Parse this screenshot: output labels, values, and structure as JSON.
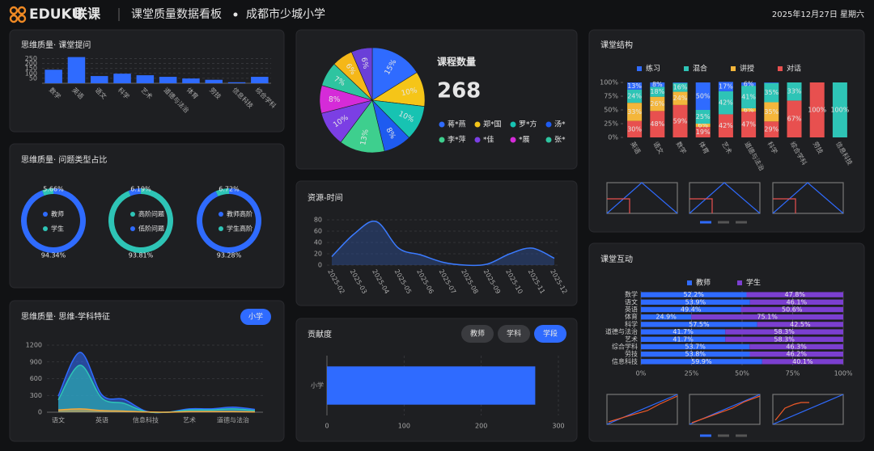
{
  "header": {
    "logo": "EDUKU",
    "logo_cn": "联课",
    "title": "课堂质量数据看板",
    "school": "成都市少城小学",
    "date": "2025年12月27日 星期六"
  },
  "chart_data": [
    {
      "type": "bar",
      "title": "思维质量· 课堂提问",
      "categories": [
        "数学",
        "英语",
        "语文",
        "科学",
        "艺术",
        "道德与法治",
        "体育",
        "劳技",
        "信息科技",
        "综合学科"
      ],
      "values": [
        137,
        265,
        73,
        97,
        81,
        65,
        48,
        35,
        10,
        65
      ],
      "color": "#2f6bff",
      "ylim": [
        0,
        270
      ],
      "yticks": [
        50,
        100,
        150,
        200,
        250
      ],
      "grid": true
    },
    {
      "type": "donut",
      "title": "思维质量· 问题类型占比",
      "pies": [
        {
          "categories": [
            "教师",
            "学生"
          ],
          "values": [
            94.34,
            5.66
          ],
          "value_labels": [
            "94.34%",
            "5.66%"
          ],
          "colors": [
            "#2f6bff",
            "#2ec4b6"
          ]
        },
        {
          "categories": [
            "高阶问题",
            "低阶问题"
          ],
          "values": [
            93.81,
            6.19
          ],
          "value_labels": [
            "93.81%",
            "6.19%"
          ],
          "colors": [
            "#2ec4b6",
            "#2f6bff"
          ]
        },
        {
          "categories": [
            "教师高阶",
            "学生高阶"
          ],
          "values": [
            93.28,
            6.72
          ],
          "value_labels": [
            "93.28%",
            "6.72%"
          ],
          "colors": [
            "#2f6bff",
            "#2ec4b6"
          ]
        }
      ]
    },
    {
      "type": "area",
      "title": "思维质量· 思维-学科特征",
      "button": "小学",
      "categories": [
        "语文",
        null,
        "英语",
        null,
        "信息科技",
        null,
        "艺术",
        null,
        "道德与法治",
        null
      ],
      "series": [
        {
          "color": "#2f6bff",
          "values": [
            290,
            1070,
            310,
            230,
            20,
            0,
            60,
            60,
            90,
            50
          ]
        },
        {
          "color": "#2ec4b6",
          "values": [
            220,
            840,
            250,
            160,
            10,
            0,
            40,
            40,
            60,
            30
          ]
        },
        {
          "color": "#f4a93b",
          "values": [
            40,
            60,
            30,
            20,
            5,
            0,
            10,
            10,
            10,
            5
          ]
        }
      ],
      "ylim": [
        0,
        1200
      ],
      "yticks": [
        0,
        300,
        600,
        900,
        1200
      ],
      "grid": true
    },
    {
      "type": "pie",
      "title": "课程数量",
      "total": 268,
      "categories": [
        "蒋*燕",
        "郑*国",
        "罗*方",
        "汤*",
        "李*萍",
        "*佳",
        "*展",
        "张*",
        null,
        null
      ],
      "values": [
        15,
        10,
        10,
        8,
        13,
        10,
        8,
        7,
        6,
        6
      ],
      "value_labels": [
        "15%",
        "10%",
        "10%",
        "8%",
        "13%",
        "10%",
        "8%",
        "7%",
        "6%",
        "6%"
      ],
      "colors": [
        "#2f6bff",
        "#f5c518",
        "#17c3b2",
        "#1e5bf0",
        "#3ecf8e",
        "#7b3fe4",
        "#d52bd8",
        "#2ec4a0",
        "#f5b718",
        "#6a3fd8"
      ]
    },
    {
      "type": "line",
      "title": "资源-时间",
      "x": [
        "2025-02",
        "2025-03",
        "2025-04",
        "2025-05",
        "2025-06",
        "2025-07",
        "2025-08",
        "2025-09",
        "2025-10",
        "2025-11",
        "2025-12"
      ],
      "values": [
        15,
        55,
        77,
        30,
        18,
        5,
        0,
        2,
        20,
        30,
        12
      ],
      "color": "#3b7bff",
      "ylim": [
        0,
        90
      ],
      "yticks": [
        0,
        20,
        40,
        60,
        80
      ],
      "grid": true
    },
    {
      "type": "hbar",
      "title": "贡献度",
      "buttons": [
        "教师",
        "学科",
        "学段"
      ],
      "active": 2,
      "categories": [
        "小学"
      ],
      "values": [
        270
      ],
      "color": "#2f6bff",
      "xlim": [
        0,
        300
      ],
      "xticks": [
        0,
        100,
        200,
        300
      ],
      "grid": true
    },
    {
      "type": "stacked_bar",
      "title": "课堂结构",
      "categories": [
        "英语",
        "语文",
        "数学",
        "体育",
        "艺术",
        "道德与法治",
        "科学",
        "综合学科",
        "劳技",
        "信息科技"
      ],
      "series": [
        {
          "name": "练习",
          "color": "#2f6bff",
          "values": [
            13,
            8,
            1,
            50,
            17,
            6,
            1,
            0,
            0,
            0
          ],
          "value_labels": [
            "13%",
            "8%",
            null,
            "50%",
            "17%",
            "6%",
            null,
            null,
            null,
            null
          ]
        },
        {
          "name": "混合",
          "color": "#2ec4b6",
          "values": [
            24,
            18,
            16,
            25,
            42,
            41,
            35,
            33,
            0,
            100
          ],
          "value_labels": [
            "24%",
            "18%",
            "16%",
            "25%",
            "42%",
            "41%",
            "35%",
            "33%",
            null,
            "100%"
          ]
        },
        {
          "name": "讲授",
          "color": "#f4b63b",
          "values": [
            33,
            26,
            24,
            6,
            0,
            6,
            35,
            0,
            0,
            0
          ],
          "value_labels": [
            "33%",
            "26%",
            "24%",
            "6%",
            null,
            "6%",
            "35%",
            null,
            null,
            null
          ]
        },
        {
          "name": "对话",
          "color": "#e8504f",
          "values": [
            30,
            48,
            59,
            19,
            42,
            47,
            29,
            67,
            100,
            0
          ],
          "value_labels": [
            "30%",
            "48%",
            "59%",
            "19%",
            "42%",
            "47%",
            "29%",
            "67%",
            "100%",
            null
          ]
        }
      ],
      "ylim": [
        0,
        100
      ],
      "yticks": [
        {
          "value": 0,
          "label": "0%"
        },
        {
          "value": 25,
          "label": "25%"
        },
        {
          "value": 50,
          "label": "50%"
        },
        {
          "value": 75,
          "label": "75%"
        },
        {
          "value": 100,
          "label": "100%"
        }
      ]
    },
    {
      "type": "stacked_hbar",
      "title": "课堂互动",
      "categories": [
        "数学",
        "语文",
        "英语",
        "体育",
        "科学",
        "道德与法治",
        "艺术",
        "综合学科",
        "劳技",
        "信息科技"
      ],
      "series": [
        {
          "name": "教师",
          "color": "#2f6bff",
          "values": [
            52.2,
            53.9,
            49.4,
            24.9,
            57.5,
            41.7,
            41.7,
            53.7,
            53.8,
            59.9
          ],
          "value_labels": [
            "52.2%",
            "53.9%",
            "49.4%",
            "24.9%",
            "57.5%",
            "41.7%",
            "41.7%",
            "53.7%",
            "53.8%",
            "59.9%"
          ]
        },
        {
          "name": "学生",
          "color": "#7b3fd0",
          "values": [
            47.8,
            46.1,
            50.6,
            75.1,
            42.5,
            58.3,
            58.3,
            46.3,
            46.2,
            40.1
          ],
          "value_labels": [
            "47.8%",
            "46.1%",
            "50.6%",
            "75.1%",
            "42.5%",
            "58.3%",
            "58.3%",
            "46.3%",
            "46.2%",
            "40.1%"
          ]
        }
      ],
      "xlim": [
        0,
        100
      ],
      "xticks": [
        {
          "value": 0,
          "label": "0%"
        },
        {
          "value": 25,
          "label": "25%"
        },
        {
          "value": 50,
          "label": "50%"
        },
        {
          "value": 75,
          "label": "75%"
        },
        {
          "value": 100,
          "label": "100%"
        }
      ],
      "grid": true
    }
  ]
}
